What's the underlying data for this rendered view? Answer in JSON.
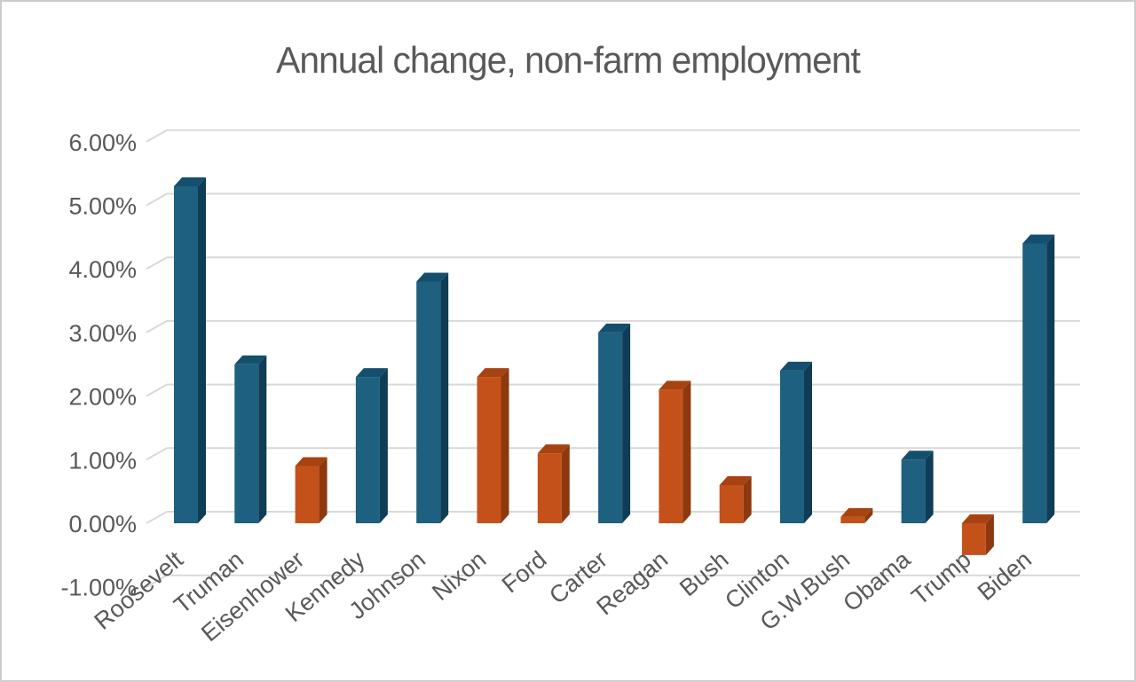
{
  "chart_data": {
    "type": "bar",
    "style": "3d-column",
    "title": "Annual change, non-farm employment",
    "categories": [
      "Roosevelt",
      "Truman",
      "Eisenhower",
      "Kennedy",
      "Johnson",
      "Nixon",
      "Ford",
      "Carter",
      "Reagan",
      "Bush",
      "Clinton",
      "G.W.Bush",
      "Obama",
      "Trump",
      "Biden"
    ],
    "values": [
      5.3,
      2.5,
      0.9,
      2.3,
      3.8,
      2.3,
      1.1,
      3.0,
      2.1,
      0.6,
      2.4,
      0.1,
      1.0,
      -0.5,
      4.4
    ],
    "bar_colors": [
      "blue",
      "blue",
      "orange",
      "blue",
      "blue",
      "orange",
      "orange",
      "blue",
      "orange",
      "orange",
      "blue",
      "orange",
      "blue",
      "orange",
      "blue"
    ],
    "xlabel": "",
    "ylabel": "",
    "ylim": [
      -1,
      6
    ],
    "y_ticks": [
      {
        "label": "6.00%",
        "value": 6
      },
      {
        "label": "5.00%",
        "value": 5
      },
      {
        "label": "4.00%",
        "value": 4
      },
      {
        "label": "3.00%",
        "value": 3
      },
      {
        "label": "2.00%",
        "value": 2
      },
      {
        "label": "1.00%",
        "value": 1
      },
      {
        "label": "0.00%",
        "value": 0
      },
      {
        "label": "-1.00%",
        "value": -1
      }
    ],
    "grid": true,
    "legend": "none",
    "colors": {
      "blue": {
        "front": "#1E6080",
        "top": "#14506E",
        "side": "#0E3D55"
      },
      "orange": {
        "front": "#C5511A",
        "top": "#A64310",
        "side": "#8D3910"
      },
      "gridline": "#D9D9D9",
      "text": "#595959",
      "title_text": "#595959",
      "canvas_border": "#CDCDCD",
      "background": "#FFFFFF"
    }
  }
}
